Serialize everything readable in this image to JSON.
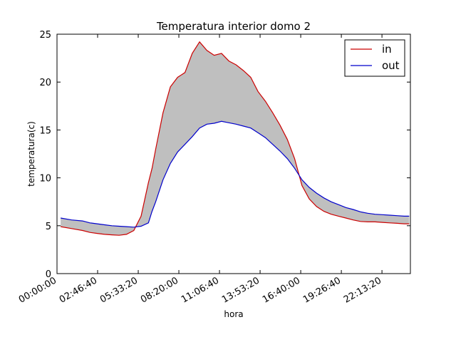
{
  "chart_data": {
    "type": "line",
    "title": "Temperatura interior domo 2",
    "xlabel": "hora",
    "ylabel": "temperatura(c)",
    "xlim": [
      0,
      87000
    ],
    "ylim": [
      0,
      25
    ],
    "x_ticks": [
      0,
      10000,
      20000,
      30000,
      40000,
      50000,
      60000,
      70000,
      80000
    ],
    "x_tick_labels": [
      "00:00:00",
      "02:46:40",
      "05:33:20",
      "08:20:00",
      "11:06:40",
      "13:53:20",
      "16:40:00",
      "19:26:40",
      "22:13:20"
    ],
    "y_ticks": [
      0,
      5,
      10,
      15,
      20,
      25
    ],
    "y_tick_labels": [
      "0",
      "5",
      "10",
      "15",
      "20",
      "25"
    ],
    "grid": false,
    "legend_position": "top-right",
    "fill_between": true,
    "fill_color": "#bfbfbf",
    "x": [
      900,
      3600,
      6300,
      8100,
      9900,
      11700,
      13500,
      15300,
      17100,
      18900,
      20700,
      22500,
      23400,
      24300,
      26100,
      27900,
      29700,
      31500,
      33300,
      35100,
      36900,
      38700,
      40500,
      42300,
      44100,
      45900,
      47700,
      49500,
      51300,
      53100,
      54900,
      56700,
      58500,
      60300,
      62100,
      63900,
      65700,
      67500,
      69300,
      71100,
      72900,
      74700,
      76500,
      78300,
      80100,
      81900,
      83700,
      85500,
      86700
    ],
    "series": [
      {
        "name": "in",
        "color": "#cc0000",
        "values": [
          4.9,
          4.7,
          4.5,
          4.3,
          4.2,
          4.1,
          4.05,
          4.0,
          4.1,
          4.5,
          6.0,
          9.5,
          11.0,
          13.0,
          16.8,
          19.5,
          20.5,
          21.0,
          23.0,
          24.2,
          23.3,
          22.8,
          23.0,
          22.2,
          21.8,
          21.2,
          20.5,
          19.0,
          18.0,
          16.8,
          15.5,
          14.0,
          12.0,
          9.2,
          7.8,
          7.0,
          6.5,
          6.2,
          6.0,
          5.8,
          5.6,
          5.45,
          5.4,
          5.4,
          5.35,
          5.3,
          5.25,
          5.2,
          5.2
        ]
      },
      {
        "name": "out",
        "color": "#0000cc",
        "values": [
          5.8,
          5.6,
          5.5,
          5.3,
          5.2,
          5.1,
          5.0,
          4.95,
          4.9,
          4.85,
          4.95,
          5.3,
          6.5,
          7.5,
          9.8,
          11.5,
          12.7,
          13.5,
          14.3,
          15.2,
          15.6,
          15.7,
          15.9,
          15.75,
          15.6,
          15.4,
          15.2,
          14.7,
          14.2,
          13.5,
          12.8,
          12.0,
          11.0,
          9.8,
          9.0,
          8.4,
          7.9,
          7.5,
          7.2,
          6.9,
          6.7,
          6.45,
          6.3,
          6.2,
          6.15,
          6.1,
          6.05,
          6.0,
          6.0
        ]
      }
    ]
  }
}
